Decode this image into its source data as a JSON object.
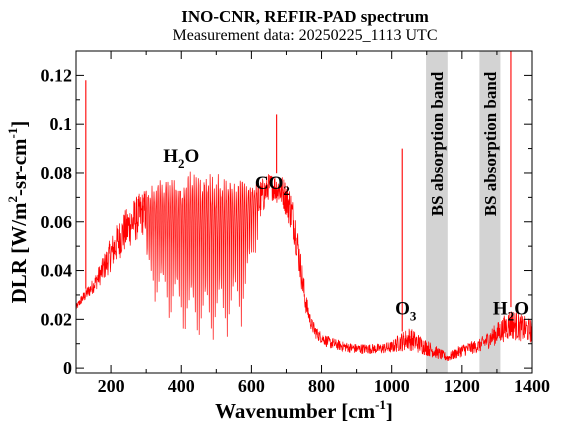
{
  "chart_data": {
    "type": "line",
    "title": "INO-CNR, REFIR-PAD spectrum",
    "subtitle": "Measurement data: 20250225_1113 UTC",
    "xlabel": {
      "main": "Wavenumber [cm",
      "sup": "-1",
      "close": "]"
    },
    "ylabel": {
      "p1": "DLR [W/m",
      "sup1": "2",
      "p2": "-sr-cm",
      "sup2": "-1",
      "close": "]"
    },
    "xlim": [
      100,
      1400
    ],
    "ylim": [
      -0.002,
      0.13
    ],
    "x_ticks": [
      200,
      400,
      600,
      800,
      1000,
      1200,
      1400
    ],
    "x_tick_labels": [
      "200",
      "400",
      "600",
      "800",
      "1000",
      "1200",
      "1400"
    ],
    "y_ticks": [
      0,
      0.02,
      0.04,
      0.06,
      0.08,
      0.1,
      0.12
    ],
    "y_tick_labels": [
      "0",
      "0.02",
      "0.04",
      "0.06",
      "0.08",
      "0.1",
      "0.12"
    ],
    "grid": false,
    "colors": {
      "series": "#ff0000",
      "band": "#d3d3d3",
      "axes": "#000000"
    },
    "shaded_bands": [
      {
        "x": [
          1098,
          1160
        ],
        "label": "BS absorption band"
      },
      {
        "x": [
          1250,
          1310
        ],
        "label": "BS absorption band"
      }
    ],
    "annotations": [
      {
        "base": "H",
        "sub": "2",
        "rest": "O",
        "x": 400,
        "y": 0.0845
      },
      {
        "base": "CO",
        "sub": "2",
        "rest": "",
        "x": 660,
        "y": 0.0735
      },
      {
        "base": "O",
        "sub": "3",
        "rest": "",
        "x": 1040,
        "y": 0.022
      },
      {
        "base": "H",
        "sub": "2",
        "rest": "O",
        "x": 1340,
        "y": 0.022
      }
    ],
    "series": [
      {
        "spikes": [
          {
            "x": 128,
            "y": 0.118
          },
          {
            "x": 672,
            "y": 0.104
          },
          {
            "x": 1030,
            "y": 0.09
          },
          {
            "x": 1340,
            "y": 0.13
          }
        ],
        "envelope": [
          [
            100,
            0.026
          ],
          [
            115,
            0.03
          ],
          [
            130,
            0.033
          ],
          [
            150,
            0.037
          ],
          [
            175,
            0.045
          ],
          [
            200,
            0.054
          ],
          [
            230,
            0.063
          ],
          [
            260,
            0.069
          ],
          [
            290,
            0.073
          ],
          [
            320,
            0.076
          ],
          [
            350,
            0.078
          ],
          [
            380,
            0.08
          ],
          [
            420,
            0.081
          ],
          [
            460,
            0.081
          ],
          [
            500,
            0.08
          ],
          [
            540,
            0.079
          ],
          [
            580,
            0.077
          ],
          [
            610,
            0.076
          ],
          [
            630,
            0.078
          ],
          [
            650,
            0.08
          ],
          [
            670,
            0.08
          ],
          [
            690,
            0.079
          ],
          [
            710,
            0.075
          ],
          [
            725,
            0.066
          ],
          [
            740,
            0.048
          ],
          [
            755,
            0.031
          ],
          [
            770,
            0.021
          ],
          [
            790,
            0.016
          ],
          [
            820,
            0.013
          ],
          [
            860,
            0.011
          ],
          [
            900,
            0.01
          ],
          [
            960,
            0.01
          ],
          [
            1000,
            0.011
          ],
          [
            1020,
            0.014
          ],
          [
            1050,
            0.017
          ],
          [
            1098,
            0.012
          ],
          [
            1160,
            0.006
          ],
          [
            1200,
            0.01
          ],
          [
            1250,
            0.012
          ],
          [
            1310,
            0.02
          ],
          [
            1340,
            0.025
          ],
          [
            1370,
            0.022
          ],
          [
            1400,
            0.02
          ]
        ],
        "absorption_minimum": [
          [
            100,
            0.02
          ],
          [
            150,
            0.023
          ],
          [
            200,
            0.022
          ],
          [
            260,
            0.028
          ],
          [
            300,
            0.032
          ],
          [
            340,
            0.02
          ],
          [
            380,
            0.012
          ],
          [
            420,
            0.006
          ],
          [
            460,
            0.005
          ],
          [
            500,
            0.006
          ],
          [
            540,
            0.01
          ],
          [
            580,
            0.018
          ],
          [
            610,
            0.045
          ],
          [
            650,
            0.065
          ],
          [
            690,
            0.06
          ],
          [
            720,
            0.045
          ],
          [
            750,
            0.02
          ],
          [
            780,
            0.01
          ],
          [
            820,
            0.006
          ],
          [
            900,
            0.004
          ],
          [
            1000,
            0.004
          ],
          [
            1050,
            0.003
          ],
          [
            1160,
            0.001
          ],
          [
            1250,
            0.004
          ],
          [
            1310,
            0.006
          ],
          [
            1400,
            0.006
          ]
        ]
      }
    ]
  }
}
